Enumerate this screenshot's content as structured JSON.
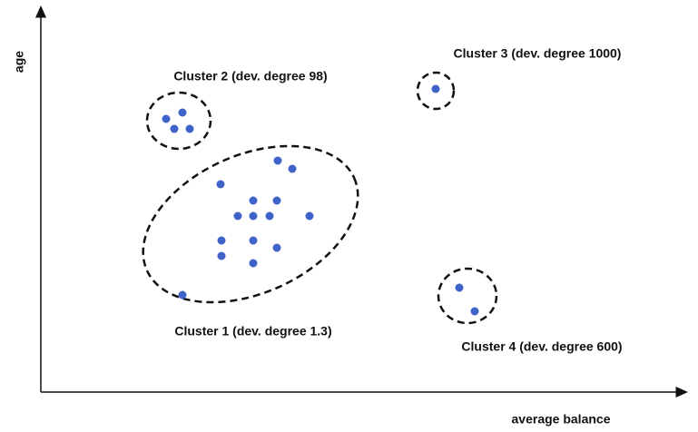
{
  "axes": {
    "y_label": "age",
    "x_label": "average balance"
  },
  "clusters": [
    {
      "label": "Cluster 1 (dev. degree 1.3)"
    },
    {
      "label": "Cluster 2 (dev. degree 98)"
    },
    {
      "label": "Cluster 3 (dev. degree 1000)"
    },
    {
      "label": "Cluster 4 (dev. degree 600)"
    }
  ]
}
